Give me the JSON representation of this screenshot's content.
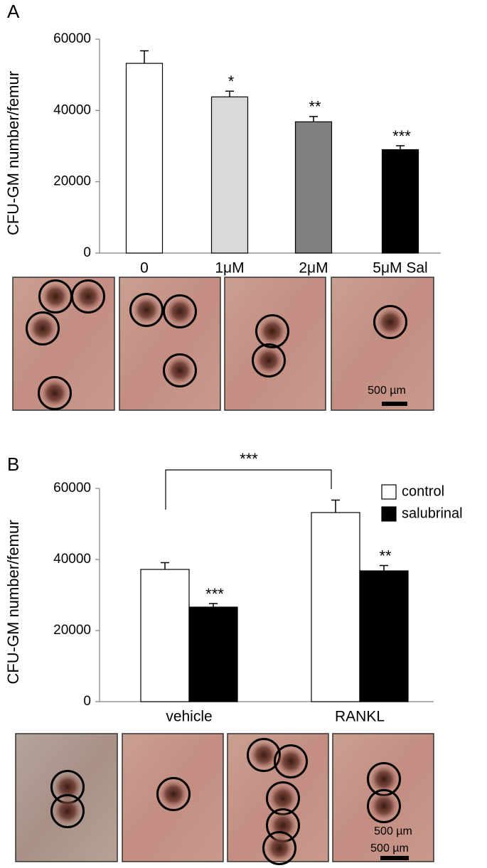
{
  "chart_data": [
    {
      "type": "bar",
      "panel": "A",
      "ylabel": "CFU-GM number/femur",
      "categories": [
        "0",
        "1μM",
        "2μM",
        "5μM Sal"
      ],
      "values": [
        53200,
        43800,
        36800,
        29000
      ],
      "errors": [
        3500,
        1600,
        1500,
        1100
      ],
      "colors": [
        "#ffffff",
        "#d9d9d9",
        "#7f7f7f",
        "#000000"
      ],
      "significance": [
        null,
        "*",
        "**",
        "***"
      ],
      "ylim": [
        0,
        60000
      ],
      "yticks": [
        0,
        20000,
        40000,
        60000
      ],
      "scale_bar_labels": [
        "500 µm"
      ]
    },
    {
      "type": "bar",
      "panel": "B",
      "ylabel": "CFU-GM number/femur",
      "categories": [
        "vehicle",
        "RANKL"
      ],
      "series": [
        {
          "name": "control",
          "color": "#ffffff",
          "values": [
            37200,
            53200
          ],
          "errors": [
            1900,
            3500
          ]
        },
        {
          "name": "salubrinal",
          "color": "#000000",
          "values": [
            26600,
            36800
          ],
          "errors": [
            1000,
            1500
          ],
          "significance": [
            "***",
            "**"
          ]
        }
      ],
      "bracket_label": "***",
      "legend": "upper right",
      "ylim": [
        0,
        60000
      ],
      "yticks": [
        0,
        20000,
        40000,
        60000
      ],
      "scale_bar_labels": [
        "500 µm",
        "500 µm"
      ]
    }
  ]
}
